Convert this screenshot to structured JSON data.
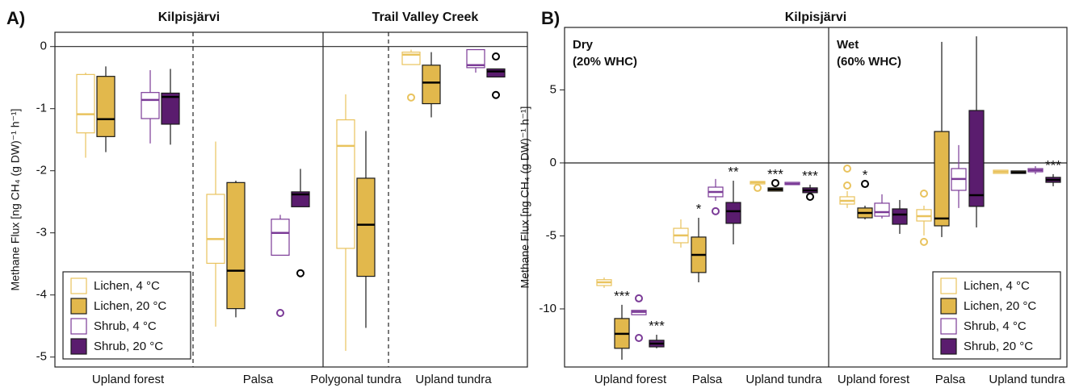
{
  "chart_data": [
    {
      "type": "box",
      "panel_label": "A)",
      "ylabel": "Methane Flux [ng CH₄ (g DW)⁻¹ h⁻¹]",
      "facets": [
        {
          "title": "Kilpisjärvi"
        },
        {
          "title": "Trail Valley Creek"
        }
      ],
      "categories": [
        "Upland forest",
        "Palsa",
        "Polygonal tundra",
        "Upland tundra"
      ],
      "ylim": [
        -5.16,
        0.23
      ],
      "yticks": [
        0,
        -1,
        -2,
        -3,
        -4,
        -5
      ],
      "legend": "lower left",
      "series": [
        {
          "name": "Lichen, 4 °C",
          "color": "#e9c35e",
          "filled": false,
          "values": [
            {
              "whislo": -1.79,
              "q1": -1.39,
              "med": -1.09,
              "q3": -0.45,
              "whishi": -0.42
            },
            {
              "whislo": -4.51,
              "q1": -3.49,
              "med": -3.1,
              "q3": -2.38,
              "whishi": -1.53
            },
            {
              "whislo": -4.9,
              "q1": -3.25,
              "med": -1.6,
              "q3": -1.18,
              "whishi": -0.77
            },
            {
              "whislo": -0.29,
              "q1": -0.29,
              "med": -0.13,
              "q3": -0.09,
              "whishi": -0.05,
              "fliers": [
                -0.82
              ]
            }
          ]
        },
        {
          "name": "Lichen, 20 °C",
          "color": "#e2b84c",
          "filled": true,
          "values": [
            {
              "whislo": -1.7,
              "q1": -1.45,
              "med": -1.17,
              "q3": -0.48,
              "whishi": -0.32
            },
            {
              "whislo": -4.36,
              "q1": -4.22,
              "med": -3.61,
              "q3": -2.19,
              "whishi": -2.16
            },
            {
              "whislo": -4.53,
              "q1": -3.7,
              "med": -2.87,
              "q3": -2.12,
              "whishi": -1.36
            },
            {
              "whislo": -1.14,
              "q1": -0.92,
              "med": -0.58,
              "q3": -0.3,
              "whishi": -0.09
            }
          ]
        },
        {
          "name": "Shrub, 4 °C",
          "color": "#7b3b97",
          "filled": false,
          "values": [
            {
              "whislo": -1.56,
              "q1": -1.16,
              "med": -0.86,
              "q3": -0.74,
              "whishi": -0.38
            },
            {
              "whislo": -3.36,
              "q1": -3.36,
              "med": -3.0,
              "q3": -2.78,
              "whishi": -2.71,
              "fliers": [
                -4.29
              ]
            },
            null,
            {
              "whislo": -0.42,
              "q1": -0.34,
              "med": -0.3,
              "q3": -0.05,
              "whishi": -0.05
            }
          ]
        },
        {
          "name": "Shrub, 20 °C",
          "color": "#5a1c6e",
          "filled": true,
          "values": [
            {
              "whislo": -1.58,
              "q1": -1.25,
              "med": -0.81,
              "q3": -0.75,
              "whishi": -0.36
            },
            {
              "whislo": -2.58,
              "q1": -2.58,
              "med": -2.38,
              "q3": -2.34,
              "whishi": -1.97,
              "fliers": [
                -3.65
              ]
            },
            null,
            {
              "whislo": -0.49,
              "q1": -0.49,
              "med": -0.4,
              "q3": -0.36,
              "whishi": -0.36,
              "fliers": [
                -0.16,
                -0.78
              ]
            }
          ]
        }
      ]
    },
    {
      "type": "box",
      "panel_label": "B)",
      "title": "Kilpisjärvi",
      "ylabel": "Methane Flux [ng CH₄ (g DW)⁻¹ h⁻¹]",
      "facets": [
        {
          "title": "Dry",
          "subtitle": "(20% WHC)"
        },
        {
          "title": "Wet",
          "subtitle": "(60% WHC)"
        }
      ],
      "categories": [
        "Upland forest",
        "Palsa",
        "Upland tundra",
        "Upland forest",
        "Palsa",
        "Upland tundra"
      ],
      "ylim": [
        -13.98,
        9.28
      ],
      "yticks": [
        5,
        0,
        -5,
        -10
      ],
      "legend": "lower right",
      "series": [
        {
          "name": "Lichen, 4 °C",
          "color": "#e9c35e",
          "filled": false,
          "values": [
            {
              "whislo": -8.56,
              "q1": -8.4,
              "med": -8.18,
              "q3": -8.0,
              "whishi": -7.85
            },
            {
              "whislo": -5.8,
              "q1": -5.47,
              "med": -4.97,
              "q3": -4.48,
              "whishi": -3.87
            },
            {
              "whislo": -1.44,
              "q1": -1.44,
              "med": -1.33,
              "q3": -1.27,
              "whishi": -1.27,
              "fliers": [
                -1.71
              ]
            },
            {
              "whislo": -3.09,
              "q1": -2.82,
              "med": -2.6,
              "q3": -2.32,
              "whishi": -1.93,
              "fliers": [
                -0.39,
                -1.55
              ]
            },
            {
              "whislo": -4.97,
              "q1": -3.98,
              "med": -3.65,
              "q3": -3.2,
              "whishi": -2.93,
              "fliers": [
                -2.1,
                -5.41
              ]
            },
            {
              "whislo": -0.72,
              "q1": -0.72,
              "med": -0.61,
              "q3": -0.5,
              "whishi": -0.5
            }
          ]
        },
        {
          "name": "Lichen, 20 °C",
          "color": "#e2b84c",
          "filled": true,
          "labels": [
            "***",
            "*",
            "***",
            "*",
            null,
            null
          ],
          "values": [
            {
              "whislo": -13.48,
              "q1": -12.7,
              "med": -11.71,
              "q3": -10.66,
              "whishi": -9.72
            },
            {
              "whislo": -8.18,
              "q1": -7.51,
              "med": -6.3,
              "q3": -5.08,
              "whishi": -3.76
            },
            {
              "whislo": -1.93,
              "q1": -1.93,
              "med": -1.82,
              "q3": -1.71,
              "whishi": -1.71,
              "fliers": [
                -1.38
              ]
            },
            {
              "whislo": -3.87,
              "q1": -3.76,
              "med": -3.43,
              "q3": -3.09,
              "whishi": -2.93,
              "fliers": [
                -1.44
              ]
            },
            {
              "whislo": -5.08,
              "q1": -4.31,
              "med": -3.81,
              "q3": 2.15,
              "whishi": 8.29
            },
            {
              "whislo": -0.72,
              "q1": -0.72,
              "med": -0.66,
              "q3": -0.55,
              "whishi": -0.55
            }
          ]
        },
        {
          "name": "Shrub, 4 °C",
          "color": "#7b3b97",
          "filled": false,
          "values": [
            {
              "whislo": -10.4,
              "q1": -10.4,
              "med": -10.2,
              "q3": -10.1,
              "whishi": -10.1,
              "fliers": [
                -9.28,
                -11.99
              ]
            },
            {
              "whislo": -2.6,
              "q1": -2.32,
              "med": -1.99,
              "q3": -1.66,
              "whishi": -1.1,
              "fliers": [
                -3.31
              ]
            },
            {
              "whislo": -1.49,
              "q1": -1.49,
              "med": -1.44,
              "q3": -1.33,
              "whishi": -1.33
            },
            {
              "whislo": -3.81,
              "q1": -3.65,
              "med": -3.37,
              "q3": -2.76,
              "whishi": -2.15
            },
            {
              "whislo": -3.09,
              "q1": -1.88,
              "med": -1.1,
              "q3": -0.39,
              "whishi": 1.22
            },
            {
              "whislo": -0.77,
              "q1": -0.61,
              "med": -0.5,
              "q3": -0.39,
              "whishi": -0.22
            }
          ]
        },
        {
          "name": "Shrub, 20 °C",
          "color": "#5a1c6e",
          "filled": true,
          "labels": [
            "***",
            "**",
            "***",
            null,
            null,
            "***"
          ],
          "values": [
            {
              "whislo": -12.7,
              "q1": -12.6,
              "med": -12.38,
              "q3": -12.15,
              "whishi": -11.77
            },
            {
              "whislo": -5.58,
              "q1": -4.14,
              "med": -3.31,
              "q3": -2.71,
              "whishi": -1.22
            },
            {
              "whislo": -2.04,
              "q1": -2.04,
              "med": -1.88,
              "q3": -1.71,
              "whishi": -1.49,
              "fliers": [
                -2.32
              ]
            },
            {
              "whislo": -4.86,
              "q1": -4.2,
              "med": -3.54,
              "q3": -3.15,
              "whishi": -2.54
            },
            {
              "whislo": -4.42,
              "q1": -2.98,
              "med": -2.21,
              "q3": 3.59,
              "whishi": 8.67
            },
            {
              "whislo": -1.6,
              "q1": -1.33,
              "med": -1.16,
              "q3": -0.99,
              "whishi": -0.77
            }
          ]
        }
      ]
    }
  ]
}
